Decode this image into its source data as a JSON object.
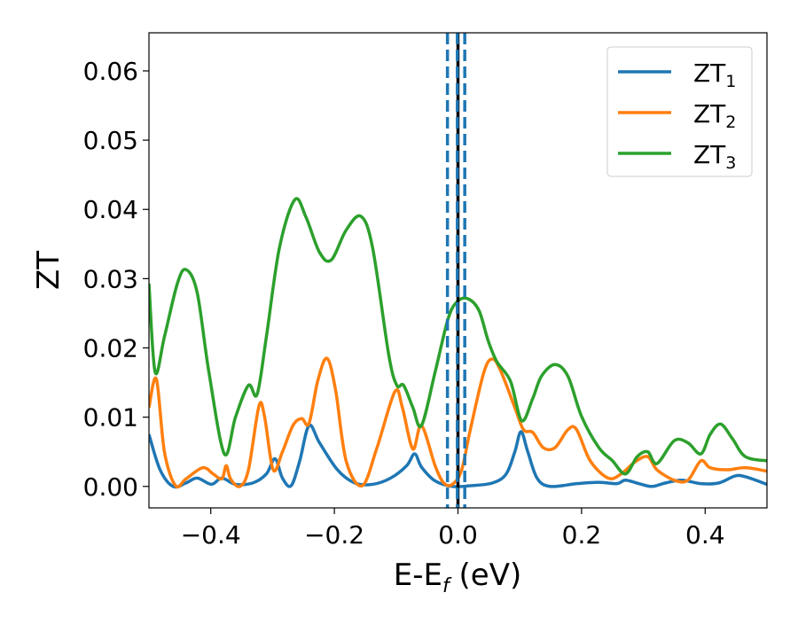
{
  "chart_data": {
    "type": "line",
    "title": "",
    "xlabel": "E-E_f (eV)",
    "xlabel_main": "E-E",
    "xlabel_sub": "f",
    "xlabel_tail": " (eV)",
    "ylabel": "ZT",
    "xlim": [
      -0.5,
      0.5
    ],
    "ylim": [
      -0.0031,
      0.0655
    ],
    "xticks": [
      -0.4,
      -0.2,
      0.0,
      0.2,
      0.4
    ],
    "xtick_labels": [
      "−0.4",
      "−0.2",
      "0.0",
      "0.2",
      "0.4"
    ],
    "yticks": [
      0,
      0.01,
      0.02,
      0.03,
      0.04,
      0.05,
      0.06
    ],
    "ytick_labels": [
      "0.00",
      "0.01",
      "0.02",
      "0.03",
      "0.04",
      "0.05",
      "0.06"
    ],
    "grid": false,
    "legend_position": "top-right",
    "vlines": [
      {
        "x": 0.0,
        "style": "solid",
        "color": "#000000"
      },
      {
        "x": -0.017,
        "style": "dashed",
        "color": "#1f77b4"
      },
      {
        "x": -0.001,
        "style": "dashed",
        "color": "#1f77b4"
      },
      {
        "x": 0.011,
        "style": "dashed",
        "color": "#1f77b4"
      }
    ],
    "series": [
      {
        "name": "ZT1",
        "label": "ZT",
        "sub": "1",
        "color": "#1f77b4",
        "points": [
          [
            -0.5,
            0.0075
          ],
          [
            -0.482,
            0.0024
          ],
          [
            -0.461,
            0
          ],
          [
            -0.44,
            0.0005
          ],
          [
            -0.422,
            0.0012
          ],
          [
            -0.399,
            0.0003
          ],
          [
            -0.382,
            0.0012
          ],
          [
            -0.36,
            0.0003
          ],
          [
            -0.332,
            0.0005
          ],
          [
            -0.31,
            0.0018
          ],
          [
            -0.296,
            0.004
          ],
          [
            -0.284,
            0.0012
          ],
          [
            -0.27,
            0.0001
          ],
          [
            -0.256,
            0.0037
          ],
          [
            -0.241,
            0.0088
          ],
          [
            -0.224,
            0.0063
          ],
          [
            -0.195,
            0.0024
          ],
          [
            -0.167,
            0.0005
          ],
          [
            -0.138,
            0.0003
          ],
          [
            -0.109,
            0.0012
          ],
          [
            -0.083,
            0.003
          ],
          [
            -0.07,
            0.0047
          ],
          [
            -0.059,
            0.0028
          ],
          [
            -0.037,
            0.0008
          ],
          [
            -0.009,
            0
          ],
          [
            0.02,
            0.0001
          ],
          [
            0.056,
            0.0005
          ],
          [
            0.078,
            0.0018
          ],
          [
            0.092,
            0.005
          ],
          [
            0.102,
            0.0079
          ],
          [
            0.113,
            0.005
          ],
          [
            0.128,
            0.0012
          ],
          [
            0.149,
            0
          ],
          [
            0.192,
            0.0004
          ],
          [
            0.228,
            0.0006
          ],
          [
            0.257,
            0.0004
          ],
          [
            0.271,
            0.0009
          ],
          [
            0.293,
            0.0004
          ],
          [
            0.314,
            0
          ],
          [
            0.336,
            0.0005
          ],
          [
            0.362,
            0.0009
          ],
          [
            0.393,
            0.0004
          ],
          [
            0.422,
            0.0005
          ],
          [
            0.448,
            0.0015
          ],
          [
            0.465,
            0.0014
          ],
          [
            0.5,
            0.0003
          ]
        ]
      },
      {
        "name": "ZT2",
        "label": "ZT",
        "sub": "2",
        "color": "#ff7f0e",
        "points": [
          [
            -0.5,
            0.0114
          ],
          [
            -0.488,
            0.0155
          ],
          [
            -0.475,
            0.005
          ],
          [
            -0.457,
            0.0001
          ],
          [
            -0.44,
            0.0011
          ],
          [
            -0.413,
            0.0027
          ],
          [
            -0.396,
            0.0018
          ],
          [
            -0.382,
            0.0011
          ],
          [
            -0.375,
            0.003
          ],
          [
            -0.368,
            0.0011
          ],
          [
            -0.353,
            0
          ],
          [
            -0.339,
            0.0024
          ],
          [
            -0.322,
            0.0116
          ],
          [
            -0.313,
            0.0101
          ],
          [
            -0.299,
            0.0024
          ],
          [
            -0.284,
            0.005
          ],
          [
            -0.267,
            0.0088
          ],
          [
            -0.253,
            0.0098
          ],
          [
            -0.241,
            0.0091
          ],
          [
            -0.227,
            0.0152
          ],
          [
            -0.212,
            0.0185
          ],
          [
            -0.198,
            0.0139
          ],
          [
            -0.181,
            0.0037
          ],
          [
            -0.155,
            0.0001
          ],
          [
            -0.131,
            0.0056
          ],
          [
            -0.102,
            0.0137
          ],
          [
            -0.09,
            0.0114
          ],
          [
            -0.073,
            0.0054
          ],
          [
            -0.059,
            0.0088
          ],
          [
            -0.037,
            0.003
          ],
          [
            -0.023,
            0.0005
          ],
          [
            -0.009,
            0.0003
          ],
          [
            0.006,
            0.0024
          ],
          [
            0.02,
            0.0082
          ],
          [
            0.042,
            0.0165
          ],
          [
            0.056,
            0.0184
          ],
          [
            0.07,
            0.0165
          ],
          [
            0.092,
            0.0114
          ],
          [
            0.106,
            0.0082
          ],
          [
            0.121,
            0.0078
          ],
          [
            0.138,
            0.0056
          ],
          [
            0.157,
            0.0056
          ],
          [
            0.178,
            0.0082
          ],
          [
            0.192,
            0.0082
          ],
          [
            0.214,
            0.0037
          ],
          [
            0.243,
            0.0012
          ],
          [
            0.264,
            0.0018
          ],
          [
            0.286,
            0.0035
          ],
          [
            0.307,
            0.0043
          ],
          [
            0.322,
            0.0024
          ],
          [
            0.35,
            0.0009
          ],
          [
            0.372,
            0.0009
          ],
          [
            0.393,
            0.0037
          ],
          [
            0.408,
            0.0027
          ],
          [
            0.436,
            0.0024
          ],
          [
            0.465,
            0.0027
          ],
          [
            0.5,
            0.0022
          ]
        ]
      },
      {
        "name": "ZT3",
        "label": "ZT",
        "sub": "3",
        "color": "#2ca02c",
        "points": [
          [
            -0.5,
            0.0293
          ],
          [
            -0.49,
            0.0165
          ],
          [
            -0.475,
            0.0216
          ],
          [
            -0.454,
            0.0293
          ],
          [
            -0.44,
            0.0313
          ],
          [
            -0.422,
            0.028
          ],
          [
            -0.403,
            0.0165
          ],
          [
            -0.378,
            0.0047
          ],
          [
            -0.36,
            0.01
          ],
          [
            -0.339,
            0.0146
          ],
          [
            -0.325,
            0.0133
          ],
          [
            -0.31,
            0.0216
          ],
          [
            -0.289,
            0.0344
          ],
          [
            -0.264,
            0.0414
          ],
          [
            -0.246,
            0.0389
          ],
          [
            -0.224,
            0.0338
          ],
          [
            -0.205,
            0.0327
          ],
          [
            -0.181,
            0.037
          ],
          [
            -0.157,
            0.039
          ],
          [
            -0.138,
            0.0344
          ],
          [
            -0.112,
            0.019
          ],
          [
            -0.099,
            0.0146
          ],
          [
            -0.088,
            0.0146
          ],
          [
            -0.073,
            0.0114
          ],
          [
            -0.059,
            0.0088
          ],
          [
            -0.037,
            0.0165
          ],
          [
            -0.016,
            0.0242
          ],
          [
            -0.001,
            0.0267
          ],
          [
            0.016,
            0.0271
          ],
          [
            0.034,
            0.0254
          ],
          [
            0.049,
            0.021
          ],
          [
            0.063,
            0.018
          ],
          [
            0.085,
            0.0152
          ],
          [
            0.103,
            0.0095
          ],
          [
            0.121,
            0.0127
          ],
          [
            0.135,
            0.0159
          ],
          [
            0.157,
            0.0176
          ],
          [
            0.178,
            0.0159
          ],
          [
            0.2,
            0.0101
          ],
          [
            0.228,
            0.0056
          ],
          [
            0.25,
            0.0037
          ],
          [
            0.271,
            0.0018
          ],
          [
            0.29,
            0.0043
          ],
          [
            0.307,
            0.005
          ],
          [
            0.322,
            0.0033
          ],
          [
            0.35,
            0.0066
          ],
          [
            0.372,
            0.0063
          ],
          [
            0.393,
            0.0047
          ],
          [
            0.408,
            0.0075
          ],
          [
            0.425,
            0.009
          ],
          [
            0.444,
            0.0069
          ],
          [
            0.465,
            0.0043
          ],
          [
            0.5,
            0.0037
          ]
        ]
      }
    ]
  }
}
